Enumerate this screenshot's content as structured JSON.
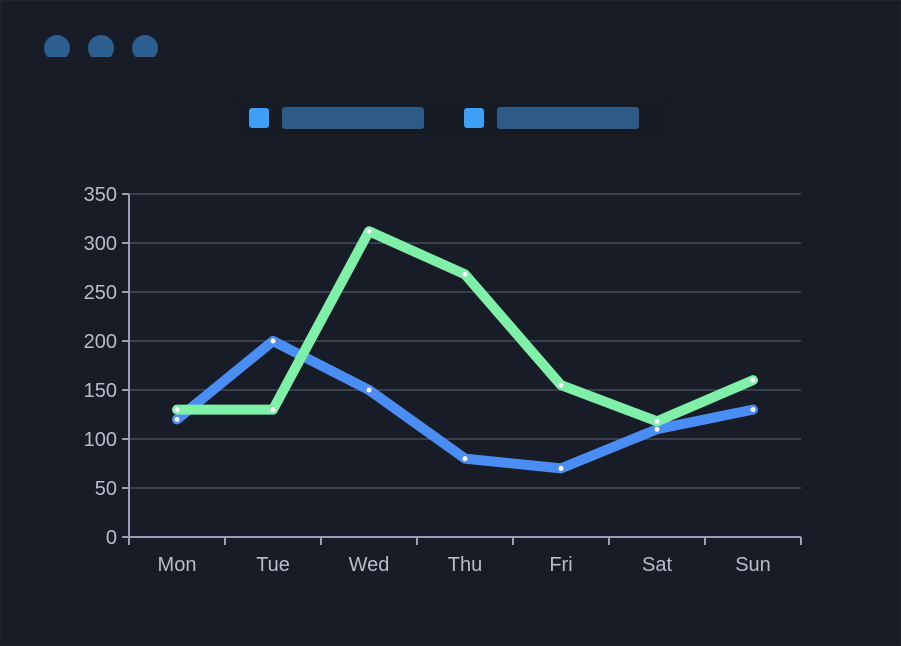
{
  "window": {
    "controls": [
      "window-dot-1",
      "window-dot-2",
      "window-dot-3"
    ]
  },
  "legend": {
    "items": [
      {
        "color": "#3ea0f5"
      },
      {
        "color": "#3ea0f5"
      }
    ]
  },
  "chart_data": {
    "type": "line",
    "categories": [
      "Mon",
      "Tue",
      "Wed",
      "Thu",
      "Fri",
      "Sat",
      "Sun"
    ],
    "y_ticks": [
      "0",
      "50",
      "100",
      "150",
      "200",
      "250",
      "300",
      "350"
    ],
    "ylim": [
      0,
      350
    ],
    "grid": true,
    "series": [
      {
        "color": "#4a8ef5",
        "values": [
          120,
          200,
          150,
          80,
          70,
          110,
          130
        ]
      },
      {
        "color": "#7ff0a8",
        "values": [
          130,
          130,
          312,
          268,
          155,
          118,
          160
        ]
      }
    ]
  }
}
